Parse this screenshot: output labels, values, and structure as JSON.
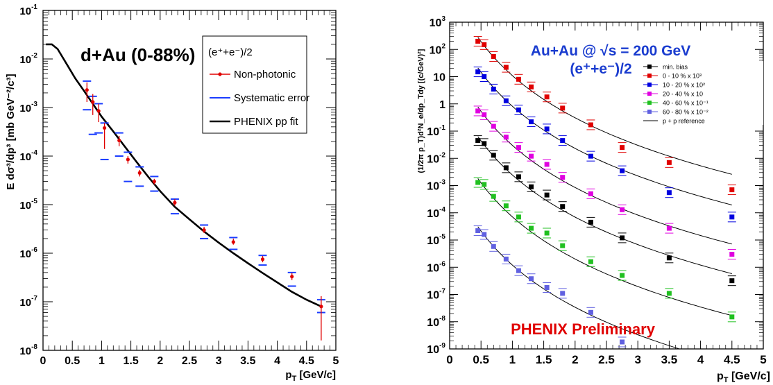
{
  "chart_data": [
    {
      "type": "scatter",
      "title": "d+Au (0-88%)",
      "xlabel": "p_T [GeV/c]",
      "ylabel": "E dσ³/dp³ [mb GeV⁻²/c³]",
      "log_y": true,
      "xlim": [
        0,
        5
      ],
      "ylim_exp": [
        -8,
        -1
      ],
      "x_ticks": [
        "0",
        "0.5",
        "1",
        "1.5",
        "2",
        "2.5",
        "3",
        "3.5",
        "4",
        "4.5",
        "5"
      ],
      "legend_title": "(e⁺+e⁻)/2",
      "legend": [
        "Non-photonic",
        "Systematic error",
        "PHENIX pp fit"
      ],
      "series": [
        {
          "name": "Non-photonic",
          "color": "#e00000",
          "x": [
            0.75,
            0.85,
            0.95,
            1.05,
            1.3,
            1.45,
            1.65,
            1.9,
            2.25,
            2.75,
            3.25,
            3.75,
            4.25,
            4.75
          ],
          "y": [
            0.0023,
            0.0013,
            0.00085,
            0.00038,
            0.00021,
            8.5e-05,
            4.5e-05,
            3e-05,
            1.1e-05,
            3e-06,
            1.7e-06,
            7.5e-07,
            3.3e-07,
            8e-08
          ],
          "ylo": [
            0.0013,
            0.0007,
            0.0005,
            0.00014,
            0.00016,
            7e-05,
            3.8e-05,
            2.6e-05,
            9.5e-06,
            2.6e-06,
            1.5e-06,
            6.5e-07,
            2.8e-07,
            1.6e-08
          ],
          "yhi": [
            0.0033,
            0.0019,
            0.0012,
            0.00048,
            0.00026,
            0.0001,
            5.2e-05,
            3.4e-05,
            1.3e-05,
            3.5e-06,
            2e-06,
            8.8e-07,
            3.9e-07,
            1.3e-07
          ],
          "sys_lo": [
            0.0009,
            0.00028,
            0.0003,
            8.5e-05,
            0.0001,
            3e-05,
            2.4e-05,
            1.9e-05,
            6.5e-06,
            2e-06,
            1.2e-06,
            5.7e-07,
            2.1e-07,
            6e-08
          ],
          "sys_hi": [
            0.0035,
            0.0017,
            0.0012,
            0.00048,
            0.0003,
            0.00012,
            6e-05,
            3.8e-05,
            1.3e-05,
            3.8e-06,
            2.1e-06,
            9e-07,
            4e-07,
            1.1e-07
          ]
        },
        {
          "name": "PHENIX pp fit",
          "type": "line",
          "color": "#000000",
          "x": [
            0.05,
            0.15,
            0.25,
            0.4,
            0.55,
            0.7,
            0.85,
            1.0,
            1.2,
            1.4,
            1.6,
            1.8,
            2.0,
            2.25,
            2.5,
            2.75,
            3.0,
            3.25,
            3.5,
            3.75,
            4.0,
            4.25,
            4.5,
            4.75
          ],
          "y": [
            0.02,
            0.02,
            0.016,
            0.008,
            0.004,
            0.0022,
            0.0012,
            0.00065,
            0.00032,
            0.000155,
            7.5e-05,
            3.7e-05,
            1.9e-05,
            9e-06,
            5e-06,
            2.8e-06,
            1.65e-06,
            1e-06,
            6.2e-07,
            3.9e-07,
            2.5e-07,
            1.6e-07,
            1.1e-07,
            8e-08
          ]
        }
      ]
    },
    {
      "type": "scatter",
      "title": "Au+Au @ √s = 200 GeV",
      "subtitle": "(e⁺+e⁻)/2",
      "watermark": "PHENIX Preliminary",
      "xlabel": "p_T [GeV/c]",
      "ylabel": "(1/2π p_T)d²N_e/dp_Tdy [(c/GeV)²]",
      "log_y": true,
      "xlim": [
        0.2,
        5.0
      ],
      "ylim_exp": [
        -9,
        3
      ],
      "x_ticks": [
        "0",
        "0.5",
        "1",
        "1.5",
        "2",
        "2.5",
        "3",
        "3.5",
        "4",
        "4.5",
        "5"
      ],
      "x": [
        0.45,
        0.55,
        0.7,
        0.9,
        1.1,
        1.3,
        1.55,
        1.8,
        2.25,
        2.75,
        3.5,
        4.5
      ],
      "series": [
        {
          "name": "0 - 10 % x 10³",
          "color": "#e00000",
          "y": [
            200,
            150,
            55,
            22,
            8,
            4.2,
            1.8,
            0.7,
            0.17,
            0.025,
            0.007,
            0.0007
          ]
        },
        {
          "name": "10 - 20 % x 10²",
          "color": "#0000e0",
          "y": [
            15,
            10,
            3.5,
            1.3,
            0.6,
            0.22,
            0.12,
            0.045,
            0.012,
            0.0035,
            0.00055,
            7e-05
          ]
        },
        {
          "name": "20 - 40 % x 10",
          "color": "#e000e0",
          "y": [
            0.55,
            0.4,
            0.15,
            0.06,
            0.025,
            0.012,
            0.006,
            0.002,
            0.0005,
            0.00013,
            2.7e-05,
            3e-06
          ]
        },
        {
          "name": "min. bias",
          "color": "#000000",
          "y": [
            0.045,
            0.035,
            0.013,
            0.0045,
            0.0021,
            0.0009,
            0.00045,
            0.00017,
            4.5e-05,
            1.2e-05,
            2.2e-06,
            3.2e-07
          ]
        },
        {
          "name": "40 - 60 % x 10⁻¹",
          "color": "#20c020",
          "y": [
            0.0013,
            0.0011,
            0.0004,
            0.00018,
            7e-05,
            2.7e-05,
            1.8e-05,
            6.2e-06,
            1.6e-06,
            5e-07,
            1.1e-07,
            1.5e-08
          ]
        },
        {
          "name": "60 - 80 % x 10⁻²",
          "color": "#6060e0",
          "y": [
            2.2e-05,
            1.6e-05,
            5.8e-06,
            2e-06,
            7.5e-07,
            3.8e-07,
            1.8e-07,
            1.1e-07,
            2.2e-08,
            1.8e-09,
            null,
            null
          ]
        }
      ],
      "legend": [
        "min. bias",
        "0 - 10 % x 10³",
        "10 - 20 % x 10²",
        "20 - 40 % x 10",
        "40 - 60 % x 10⁻¹",
        "60 - 80 % x 10⁻²",
        "p + p reference"
      ],
      "reference_label": "p + p reference"
    }
  ]
}
